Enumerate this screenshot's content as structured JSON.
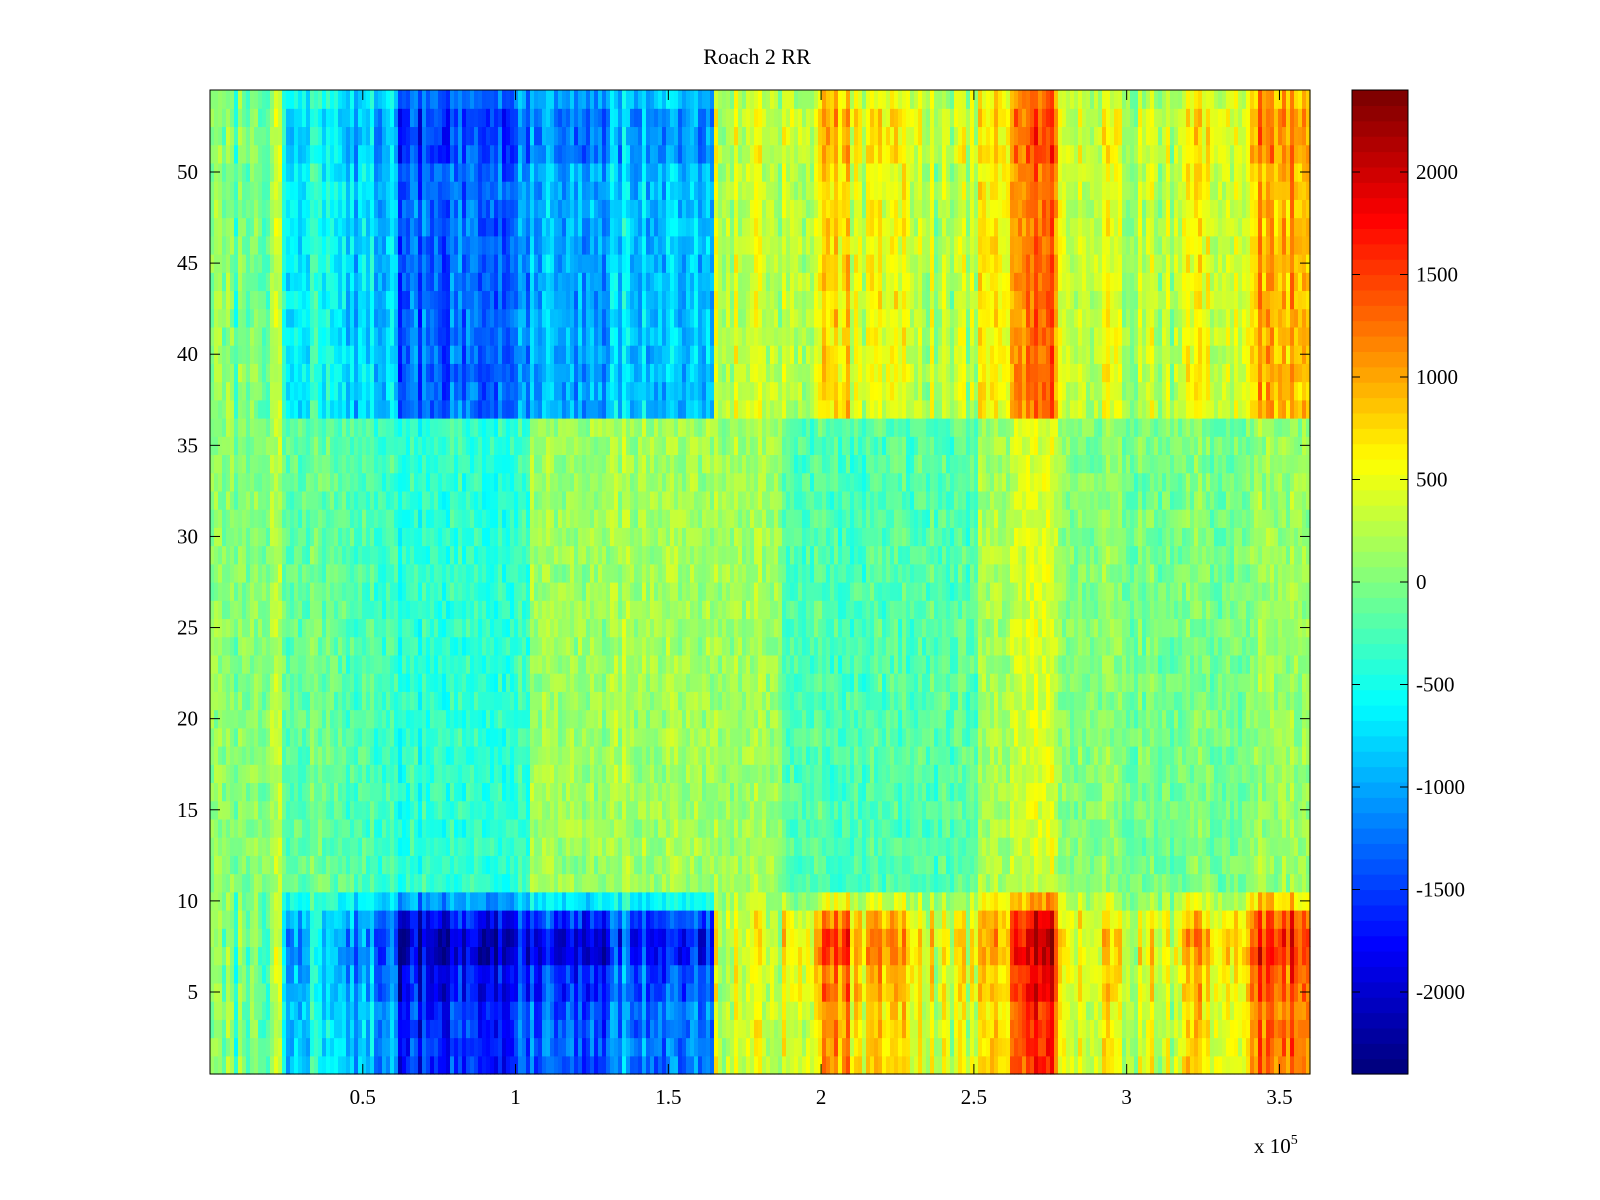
{
  "chart_data": {
    "type": "heatmap",
    "title": "Roach 2 RR",
    "xlabel": "",
    "ylabel": "",
    "x_exponent_label": "x 10",
    "x_exponent": "5",
    "xlim": [
      0,
      360000
    ],
    "ylim": [
      0.5,
      54.5
    ],
    "x_ticks": [
      {
        "value": 50000,
        "label": "0.5"
      },
      {
        "value": 100000,
        "label": "1"
      },
      {
        "value": 150000,
        "label": "1.5"
      },
      {
        "value": 200000,
        "label": "2"
      },
      {
        "value": 250000,
        "label": "2.5"
      },
      {
        "value": 300000,
        "label": "3"
      },
      {
        "value": 350000,
        "label": "3.5"
      }
    ],
    "y_ticks": [
      {
        "value": 5,
        "label": "5"
      },
      {
        "value": 10,
        "label": "10"
      },
      {
        "value": 15,
        "label": "15"
      },
      {
        "value": 20,
        "label": "20"
      },
      {
        "value": 25,
        "label": "25"
      },
      {
        "value": 30,
        "label": "30"
      },
      {
        "value": 35,
        "label": "35"
      },
      {
        "value": 40,
        "label": "40"
      },
      {
        "value": 45,
        "label": "45"
      },
      {
        "value": 50,
        "label": "50"
      }
    ],
    "rows": 54,
    "colorbar": {
      "colormap": "jet",
      "clim": [
        -2400,
        2400
      ],
      "ticks": [
        {
          "value": 2000,
          "label": "2000"
        },
        {
          "value": 1500,
          "label": "1500"
        },
        {
          "value": 1000,
          "label": "1000"
        },
        {
          "value": 500,
          "label": "500"
        },
        {
          "value": 0,
          "label": "0"
        },
        {
          "value": -500,
          "label": "-500"
        },
        {
          "value": -1000,
          "label": "-1000"
        },
        {
          "value": -1500,
          "label": "-1500"
        },
        {
          "value": -2000,
          "label": "-2000"
        }
      ]
    },
    "column_segments": [
      {
        "x_start": 0,
        "x_end": 20000,
        "outer": -150,
        "middle": 0
      },
      {
        "x_start": 20000,
        "x_end": 23000,
        "outer": 300,
        "middle": 250
      },
      {
        "x_start": 23000,
        "x_end": 45000,
        "outer": -650,
        "middle": -100
      },
      {
        "x_start": 45000,
        "x_end": 62000,
        "outer": -950,
        "middle": -250
      },
      {
        "x_start": 62000,
        "x_end": 78000,
        "outer": -1700,
        "middle": -400
      },
      {
        "x_start": 78000,
        "x_end": 105000,
        "outer": -1500,
        "middle": -350
      },
      {
        "x_start": 105000,
        "x_end": 130000,
        "outer": -1300,
        "middle": 150
      },
      {
        "x_start": 130000,
        "x_end": 165000,
        "outer": -1100,
        "middle": 200
      },
      {
        "x_start": 165000,
        "x_end": 187000,
        "outer": 350,
        "middle": 150
      },
      {
        "x_start": 187000,
        "x_end": 200000,
        "outer": 500,
        "middle": -200
      },
      {
        "x_start": 200000,
        "x_end": 210000,
        "outer": 1100,
        "middle": -250
      },
      {
        "x_start": 210000,
        "x_end": 230000,
        "outer": 650,
        "middle": -250
      },
      {
        "x_start": 230000,
        "x_end": 252000,
        "outer": 400,
        "middle": -200
      },
      {
        "x_start": 252000,
        "x_end": 262000,
        "outer": 850,
        "middle": 200
      },
      {
        "x_start": 262000,
        "x_end": 278000,
        "outer": 1550,
        "middle": 400
      },
      {
        "x_start": 278000,
        "x_end": 300000,
        "outer": 500,
        "middle": 50
      },
      {
        "x_start": 300000,
        "x_end": 318000,
        "outer": 350,
        "middle": -50
      },
      {
        "x_start": 318000,
        "x_end": 340000,
        "outer": 750,
        "middle": 0
      },
      {
        "x_start": 340000,
        "x_end": 360000,
        "outer": 1300,
        "middle": 150
      }
    ],
    "row_groups": [
      {
        "y_from": 1,
        "y_to": 10,
        "weight": 1.0,
        "offset": 0
      },
      {
        "y_from": 11,
        "y_to": 36,
        "weight": 0.0,
        "offset": 0
      },
      {
        "y_from": 37,
        "y_to": 54,
        "weight": 0.75,
        "offset": 0
      }
    ]
  }
}
